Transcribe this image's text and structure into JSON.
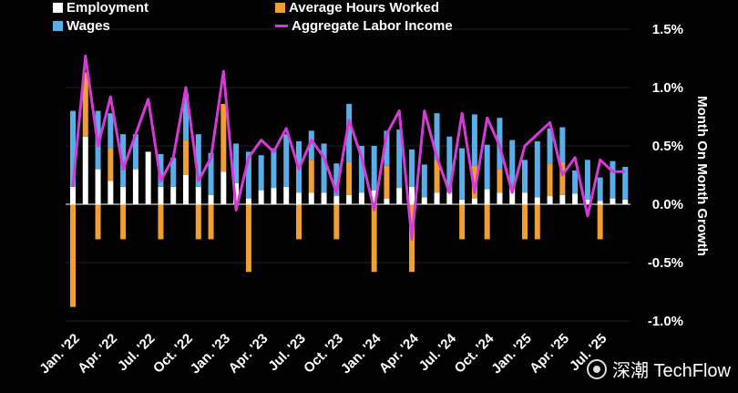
{
  "legend": {
    "employment": "Employment",
    "hours": "Average Hours Worked",
    "wages": "Wages",
    "income": "Aggregate Labor Income"
  },
  "colors": {
    "employment": "#ffffff",
    "hours": "#f0a030",
    "wages": "#5aaee8",
    "income": "#d63ad6",
    "background": "#000000"
  },
  "watermark": "深潮 TechFlow",
  "watermark_icon": "techflow-logo-icon",
  "chart_data": {
    "type": "bar",
    "ylabel": "Month On Month Growth",
    "ylim": [
      -1.0,
      1.5
    ],
    "yticks": [
      1.5,
      1.0,
      0.5,
      0.0,
      -0.5,
      -1.0
    ],
    "ytick_labels": [
      "1.5%",
      "1.0%",
      "0.5%",
      "0.0%",
      "-0.5%",
      "-1.0%"
    ],
    "xtick_labels": [
      "Jan. '22",
      "Apr. '22",
      "Jul. '22",
      "Oct. '22",
      "Jan. '23",
      "Apr. '23",
      "Jul. '23",
      "Oct. '23",
      "Jan. '24",
      "Apr. '24",
      "Jul. '24",
      "Oct. '24",
      "Jan. '25",
      "Apr. '25",
      "Jul. '25"
    ],
    "legend_position": "top",
    "series": [
      {
        "name": "Employment",
        "values": [
          0.15,
          0.58,
          0.3,
          0.2,
          0.15,
          0.3,
          0.45,
          0.15,
          0.15,
          0.25,
          0.15,
          0.08,
          0.28,
          0.18,
          0.05,
          0.12,
          0.14,
          0.15,
          0.1,
          0.1,
          0.1,
          0.07,
          0.08,
          0.1,
          0.12,
          0.05,
          0.14,
          0.15,
          0.06,
          0.1,
          0.1,
          0.04,
          0.05,
          0.13,
          0.1,
          0.15,
          0.1,
          0.06,
          0.07,
          0.08,
          0.09,
          0.04,
          0.03,
          0.05,
          0.04
        ]
      },
      {
        "name": "Average Hours Worked",
        "values": [
          -0.88,
          0.55,
          -0.3,
          0.28,
          -0.3,
          0.0,
          0.0,
          -0.3,
          0.0,
          0.3,
          -0.3,
          -0.3,
          0.58,
          0.0,
          -0.58,
          0.0,
          0.0,
          0.0,
          -0.3,
          0.28,
          0.0,
          -0.3,
          0.28,
          0.0,
          -0.58,
          0.28,
          0.0,
          -0.58,
          0.0,
          0.28,
          0.0,
          -0.3,
          0.28,
          -0.3,
          0.2,
          0.0,
          -0.3,
          -0.3,
          0.28,
          0.28,
          0.0,
          0.0,
          -0.3,
          0.0,
          0.0
        ]
      },
      {
        "name": "Wages",
        "values": [
          0.65,
          0.0,
          0.5,
          0.3,
          0.45,
          0.3,
          0.0,
          0.28,
          0.25,
          0.4,
          0.45,
          0.36,
          0.0,
          0.34,
          0.4,
          0.3,
          0.34,
          0.45,
          0.44,
          0.25,
          0.42,
          0.28,
          0.5,
          0.4,
          0.38,
          0.3,
          0.5,
          0.32,
          0.28,
          0.4,
          0.48,
          0.44,
          0.44,
          0.38,
          0.44,
          0.4,
          0.28,
          0.48,
          0.3,
          0.3,
          0.2,
          0.34,
          0.2,
          0.32,
          0.28
        ]
      },
      {
        "name": "Aggregate Labor Income",
        "values": [
          0.15,
          1.27,
          0.5,
          0.92,
          0.3,
          0.6,
          0.9,
          0.2,
          0.4,
          1.0,
          0.2,
          0.4,
          1.14,
          -0.05,
          0.4,
          0.55,
          0.45,
          0.65,
          0.3,
          0.55,
          0.4,
          0.1,
          0.72,
          0.4,
          -0.05,
          0.6,
          0.8,
          -0.3,
          0.8,
          0.4,
          0.1,
          0.78,
          0.1,
          0.74,
          0.5,
          0.1,
          0.5,
          0.6,
          0.7,
          0.25,
          0.4,
          -0.1,
          0.38,
          0.28,
          0.28
        ]
      }
    ]
  }
}
